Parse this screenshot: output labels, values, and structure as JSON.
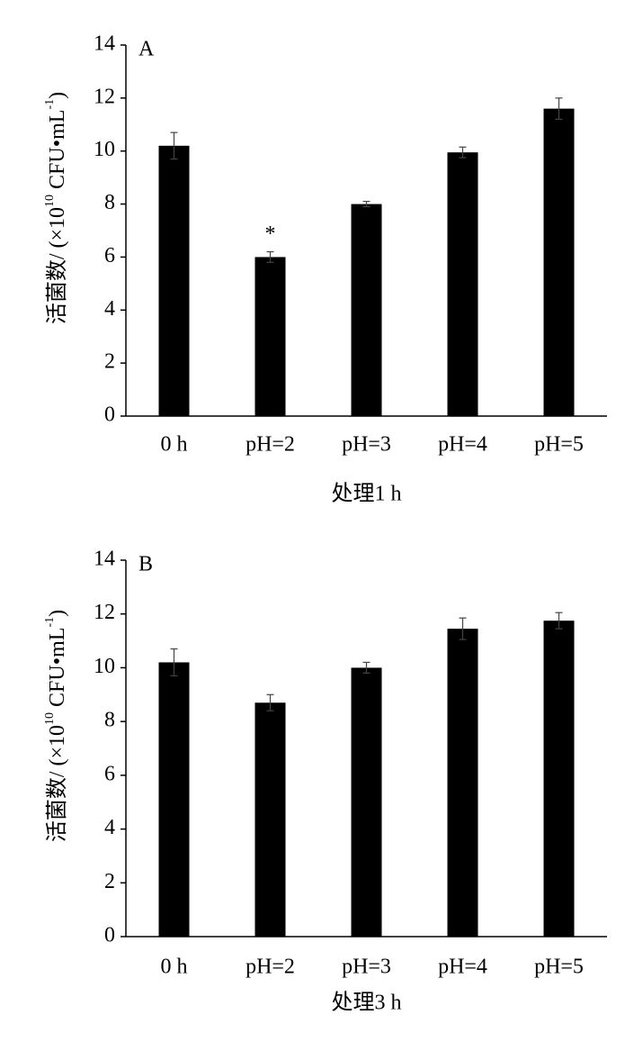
{
  "chart_data": [
    {
      "type": "bar",
      "panel_label": "A",
      "ylabel": [
        "活菌数/ (×10",
        "10",
        " CFU•mL",
        "-1",
        ")"
      ],
      "xlabel": "处理1 h",
      "categories": [
        "0 h",
        "pH=2",
        "pH=3",
        "pH=4",
        "pH=5"
      ],
      "values": [
        10.2,
        6.0,
        8.0,
        9.95,
        11.6
      ],
      "errors": [
        0.5,
        0.2,
        0.1,
        0.2,
        0.4
      ],
      "color": "#000000",
      "annotations": [
        {
          "text": "*",
          "x": "pH=2"
        }
      ],
      "ylim": [
        0,
        14
      ],
      "yticks": [
        0,
        2,
        4,
        6,
        8,
        10,
        12,
        14
      ]
    },
    {
      "type": "bar",
      "panel_label": "B",
      "ylabel": [
        "活菌数/ (×10",
        "10",
        " CFU•mL",
        "-1",
        ")"
      ],
      "xlabel": "处理3 h",
      "categories": [
        "0 h",
        "pH=2",
        "pH=3",
        "pH=4",
        "pH=5"
      ],
      "values": [
        10.2,
        8.7,
        10.0,
        11.45,
        11.75
      ],
      "errors": [
        0.5,
        0.3,
        0.2,
        0.4,
        0.3
      ],
      "color": "#000000",
      "annotations": [],
      "ylim": [
        0,
        14
      ],
      "yticks": [
        0,
        2,
        4,
        6,
        8,
        10,
        12,
        14
      ]
    }
  ]
}
